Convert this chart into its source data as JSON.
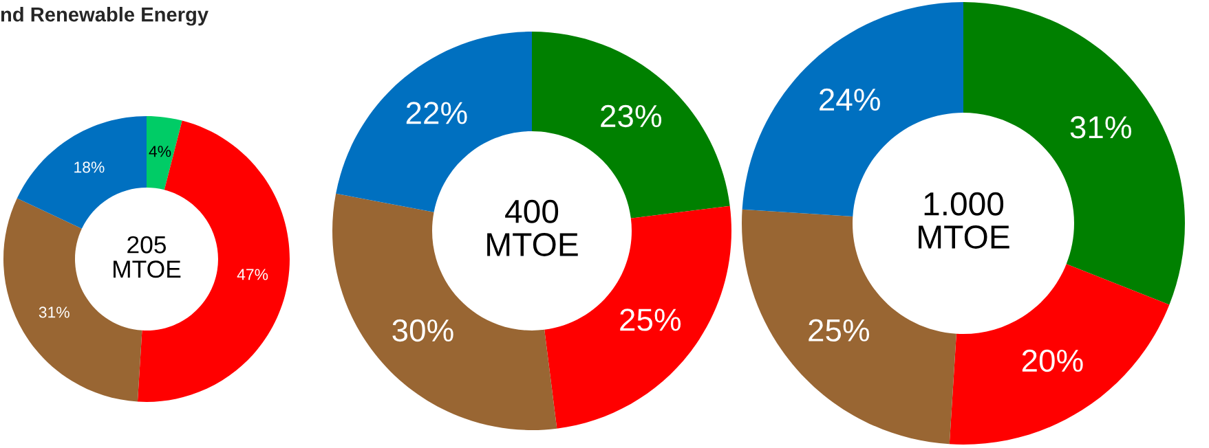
{
  "chart_data": [
    {
      "type": "donut",
      "title": "nd Renewable Energy",
      "categories": [
        null,
        null,
        null,
        null
      ],
      "values": [
        4,
        47,
        31,
        18
      ],
      "colors": [
        "#00cc66",
        "#ff0000",
        "#996633",
        "#0070c0"
      ],
      "value_labels": [
        "4%",
        "47%",
        "31%",
        "18%"
      ],
      "annotations": [
        "205\nMTOE"
      ]
    },
    {
      "type": "donut",
      "categories": [
        null,
        null,
        null,
        null
      ],
      "values": [
        23,
        25,
        30,
        22
      ],
      "colors": [
        "#008000",
        "#ff0000",
        "#996633",
        "#0070c0"
      ],
      "value_labels": [
        "23%",
        "25%",
        "30%",
        "22%"
      ],
      "annotations": [
        "400\nMTOE"
      ]
    },
    {
      "type": "donut",
      "categories": [
        null,
        null,
        null,
        null
      ],
      "values": [
        31,
        20,
        25,
        24
      ],
      "colors": [
        "#008000",
        "#ff0000",
        "#996633",
        "#0070c0"
      ],
      "value_labels": [
        "31%",
        "20%",
        "25%",
        "24%"
      ],
      "annotations": [
        "1.000\nMTOE"
      ]
    }
  ]
}
